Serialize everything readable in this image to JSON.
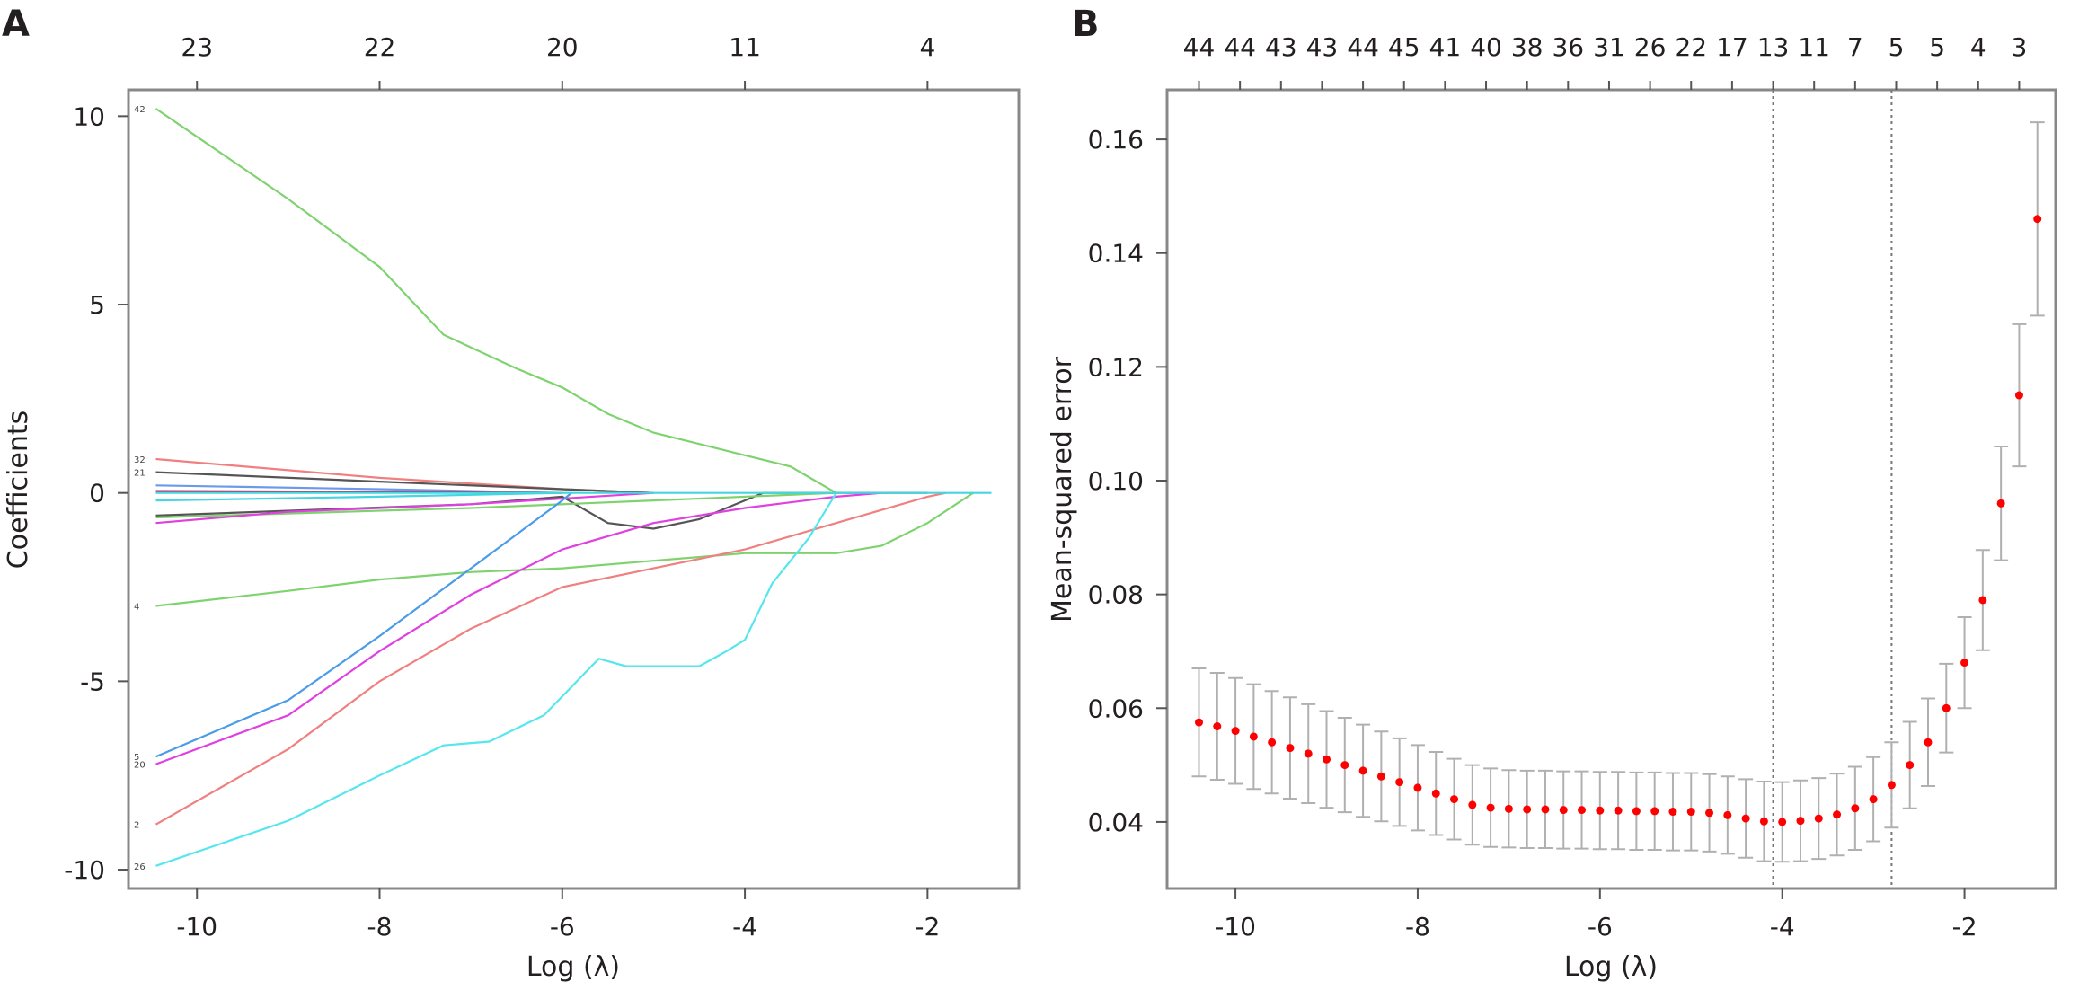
{
  "chart_data": [
    {
      "panel": "A",
      "type": "line",
      "xlabel": "Log (λ)",
      "ylabel": "Coefficients",
      "xlim": [
        -10.75,
        -1.0
      ],
      "ylim": [
        -10.5,
        10.7
      ],
      "xticks": [
        -10,
        -8,
        -6,
        -4,
        -2
      ],
      "yticks": [
        10,
        5,
        0,
        -5,
        -10
      ],
      "top_axis": {
        "ticks": [
          -10,
          -8,
          -6,
          -4,
          -2
        ],
        "labels": [
          "23",
          "22",
          "20",
          "11",
          "4"
        ]
      },
      "grid": false,
      "series": [
        {
          "name": "42",
          "color": "#7fd36f",
          "points": [
            [
              -10.45,
              10.2
            ],
            [
              -9,
              7.8
            ],
            [
              -8,
              6
            ],
            [
              -7.3,
              4.2
            ],
            [
              -6.5,
              3.3
            ],
            [
              -6,
              2.8
            ],
            [
              -5.5,
              2.1
            ],
            [
              -5,
              1.6
            ],
            [
              -4,
              1.0
            ],
            [
              -3.5,
              0.7
            ],
            [
              -3,
              0
            ]
          ]
        },
        {
          "name": "32",
          "color": "#f08080",
          "points": [
            [
              -10.45,
              0.9
            ],
            [
              -8,
              0.4
            ],
            [
              -6,
              0.1
            ],
            [
              -5,
              0
            ]
          ]
        },
        {
          "name": "21",
          "color": "#555555",
          "points": [
            [
              -10.45,
              0.55
            ],
            [
              -8,
              0.3
            ],
            [
              -6,
              0.1
            ],
            [
              -5,
              0
            ]
          ]
        },
        {
          "name": "",
          "color": "#6a9be8",
          "points": [
            [
              -10.45,
              0.2
            ],
            [
              -8,
              0.1
            ],
            [
              -6,
              0
            ]
          ]
        },
        {
          "name": "",
          "color": "#c0185a",
          "points": [
            [
              -10.45,
              0.05
            ],
            [
              -8,
              0.03
            ],
            [
              -6,
              0
            ]
          ]
        },
        {
          "name": "",
          "color": "#45d6e0",
          "points": [
            [
              -10.45,
              -0.2
            ],
            [
              -8,
              -0.1
            ],
            [
              -6,
              0
            ]
          ]
        },
        {
          "name": "",
          "color": "#555555",
          "points": [
            [
              -10.45,
              -0.6
            ],
            [
              -7,
              -0.3
            ],
            [
              -6,
              -0.1
            ],
            [
              -5.5,
              -0.8
            ],
            [
              -5,
              -0.95
            ],
            [
              -4.5,
              -0.7
            ],
            [
              -3.8,
              0
            ],
            [
              -2,
              0
            ]
          ]
        },
        {
          "name": "",
          "color": "#7fd36f",
          "points": [
            [
              -10.45,
              -0.65
            ],
            [
              -7,
              -0.4
            ],
            [
              -5,
              -0.2
            ],
            [
              -3,
              0
            ]
          ]
        },
        {
          "name": "",
          "color": "#e040e0",
          "points": [
            [
              -10.45,
              -0.8
            ],
            [
              -9,
              -0.5
            ],
            [
              -7,
              -0.3
            ],
            [
              -5,
              0
            ]
          ]
        },
        {
          "name": "4",
          "color": "#7fd36f",
          "points": [
            [
              -10.45,
              -3.0
            ],
            [
              -9,
              -2.6
            ],
            [
              -8,
              -2.3
            ],
            [
              -7,
              -2.1
            ],
            [
              -6,
              -2.0
            ],
            [
              -5,
              -1.8
            ],
            [
              -4,
              -1.6
            ],
            [
              -3,
              -1.6
            ],
            [
              -2.5,
              -1.4
            ],
            [
              -2,
              -0.8
            ],
            [
              -1.5,
              0
            ]
          ]
        },
        {
          "name": "5",
          "color": "#4a9be8",
          "points": [
            [
              -10.45,
              -7.0
            ],
            [
              -9,
              -5.5
            ],
            [
              -8,
              -3.8
            ],
            [
              -7,
              -2.0
            ],
            [
              -6,
              -0.2
            ],
            [
              -5.9,
              0
            ]
          ]
        },
        {
          "name": "20",
          "color": "#e040e0",
          "points": [
            [
              -10.45,
              -7.2
            ],
            [
              -9,
              -5.9
            ],
            [
              -8,
              -4.2
            ],
            [
              -7,
              -2.7
            ],
            [
              -6,
              -1.5
            ],
            [
              -5,
              -0.8
            ],
            [
              -4,
              -0.4
            ],
            [
              -3,
              -0.1
            ],
            [
              -2.5,
              0
            ]
          ]
        },
        {
          "name": "2",
          "color": "#f08080",
          "points": [
            [
              -10.45,
              -8.8
            ],
            [
              -9,
              -6.8
            ],
            [
              -8,
              -5.0
            ],
            [
              -7,
              -3.6
            ],
            [
              -6,
              -2.5
            ],
            [
              -5,
              -2.0
            ],
            [
              -4,
              -1.5
            ],
            [
              -3,
              -0.8
            ],
            [
              -2,
              -0.1
            ],
            [
              -1.8,
              0
            ]
          ]
        },
        {
          "name": "26",
          "color": "#55e6ee",
          "points": [
            [
              -10.45,
              -9.9
            ],
            [
              -9,
              -8.7
            ],
            [
              -8,
              -7.5
            ],
            [
              -7.3,
              -6.7
            ],
            [
              -6.8,
              -6.6
            ],
            [
              -6.2,
              -5.9
            ],
            [
              -5.6,
              -4.4
            ],
            [
              -5.3,
              -4.6
            ],
            [
              -4.5,
              -4.6
            ],
            [
              -4.2,
              -4.2
            ],
            [
              -4,
              -3.9
            ],
            [
              -3.7,
              -2.4
            ],
            [
              -3.3,
              -1.2
            ],
            [
              -3,
              0
            ]
          ]
        },
        {
          "name": "",
          "color": "#45d6e0",
          "points": [
            [
              -10.45,
              0
            ],
            [
              -1.3,
              0
            ]
          ]
        }
      ]
    },
    {
      "panel": "B",
      "type": "scatter",
      "xlabel": "Log (λ)",
      "ylabel": "Mean-squared error",
      "xlim": [
        -10.75,
        -1.0
      ],
      "ylim": [
        0.0283,
        0.1687
      ],
      "xticks": [
        -10,
        -8,
        -6,
        -4,
        -2
      ],
      "yticks": [
        0.04,
        0.06,
        0.08,
        0.1,
        0.12,
        0.14,
        0.16
      ],
      "ytick_labels": [
        "0.04",
        "0.06",
        "0.08",
        "0.10",
        "0.12",
        "0.14",
        "0.16"
      ],
      "top_axis": {
        "ticks": [
          -10.4,
          -9.95,
          -9.5,
          -9.05,
          -8.6,
          -8.15,
          -7.7,
          -7.25,
          -6.8,
          -6.35,
          -5.9,
          -5.45,
          -5.0,
          -4.55,
          -4.1,
          -3.65,
          -3.2,
          -2.75,
          -2.3,
          -1.85,
          -1.4
        ],
        "labels": [
          "44",
          "44",
          "43",
          "43",
          "44",
          "45",
          "41",
          "40",
          "38",
          "36",
          "31",
          "26",
          "22",
          "17",
          "13",
          "11",
          "7",
          "5",
          "5",
          "4",
          "3"
        ]
      },
      "vlines": [
        -4.1,
        -2.8
      ],
      "grid": false,
      "point_color": "#ff0000",
      "errorbar_color": "#b0b0b0",
      "x": [
        -10.4,
        -10.2,
        -10.0,
        -9.8,
        -9.6,
        -9.4,
        -9.2,
        -9.0,
        -8.8,
        -8.6,
        -8.4,
        -8.2,
        -8.0,
        -7.8,
        -7.6,
        -7.4,
        -7.2,
        -7.0,
        -6.8,
        -6.6,
        -6.4,
        -6.2,
        -6.0,
        -5.8,
        -5.6,
        -5.4,
        -5.2,
        -5.0,
        -4.8,
        -4.6,
        -4.4,
        -4.2,
        -4.0,
        -3.8,
        -3.6,
        -3.4,
        -3.2,
        -3.0,
        -2.8,
        -2.6,
        -2.4,
        -2.2,
        -2.0,
        -1.8,
        -1.6,
        -1.4,
        -1.2
      ],
      "mse": [
        0.0575,
        0.0568,
        0.056,
        0.055,
        0.054,
        0.053,
        0.052,
        0.051,
        0.05,
        0.049,
        0.048,
        0.047,
        0.046,
        0.045,
        0.044,
        0.043,
        0.0425,
        0.0423,
        0.0422,
        0.0422,
        0.0421,
        0.0421,
        0.042,
        0.042,
        0.0419,
        0.0419,
        0.0418,
        0.0418,
        0.0416,
        0.0412,
        0.0406,
        0.0401,
        0.04,
        0.0402,
        0.0406,
        0.0413,
        0.0424,
        0.044,
        0.0465,
        0.05,
        0.054,
        0.06,
        0.068,
        0.079,
        0.096,
        0.115,
        0.146
      ],
      "se": [
        0.0095,
        0.0094,
        0.0093,
        0.0092,
        0.009,
        0.0089,
        0.0087,
        0.0085,
        0.0083,
        0.0081,
        0.0079,
        0.0077,
        0.0075,
        0.0073,
        0.0071,
        0.007,
        0.0069,
        0.0068,
        0.0068,
        0.0068,
        0.0068,
        0.0068,
        0.0068,
        0.0068,
        0.0068,
        0.0068,
        0.0068,
        0.0068,
        0.0068,
        0.0068,
        0.0069,
        0.007,
        0.007,
        0.0071,
        0.0071,
        0.0072,
        0.0073,
        0.0074,
        0.0075,
        0.0076,
        0.0077,
        0.0078,
        0.008,
        0.0088,
        0.01,
        0.0125,
        0.017
      ]
    }
  ]
}
